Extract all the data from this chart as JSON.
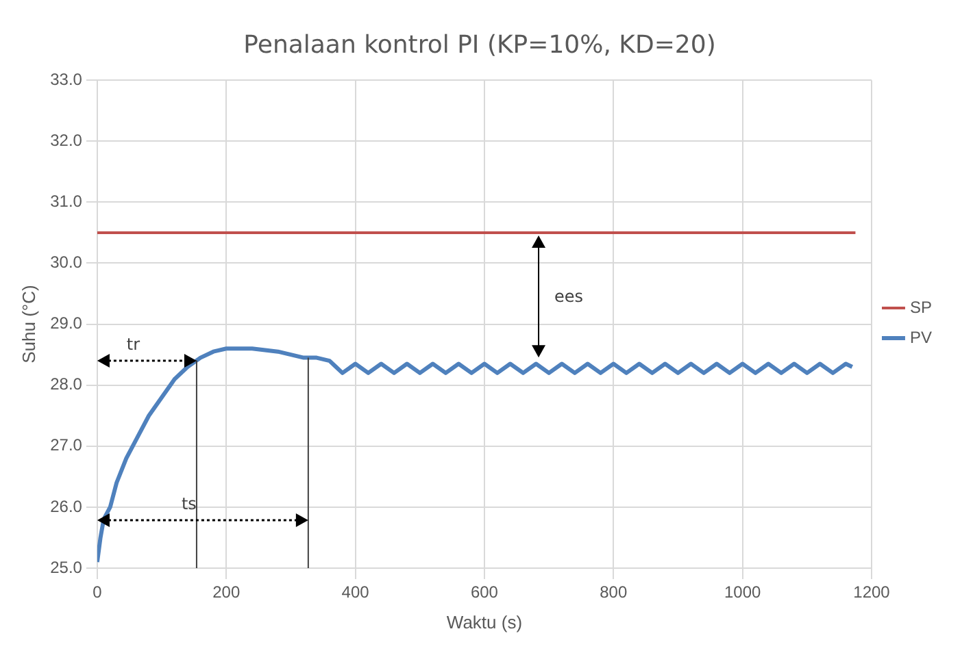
{
  "chart_data": {
    "type": "line",
    "title": "Penalaan kontrol PI (KP=10%, KD=20)",
    "xlabel": "Waktu (s)",
    "ylabel": "Suhu (°C)",
    "xlim": [
      0,
      1200
    ],
    "xticks": [
      0,
      200,
      400,
      600,
      800,
      1000,
      1200
    ],
    "ylim": [
      25,
      33
    ],
    "yticks": [
      {
        "value": 25,
        "label": "25.0"
      },
      {
        "value": 26,
        "label": "26.0"
      },
      {
        "value": 27,
        "label": "27.0"
      },
      {
        "value": 28,
        "label": "28.0"
      },
      {
        "value": 29,
        "label": "29.0"
      },
      {
        "value": 30,
        "label": "30.0"
      },
      {
        "value": 31,
        "label": "31.0"
      },
      {
        "value": 32,
        "label": "32.0"
      },
      {
        "value": 33,
        "label": "33.0"
      }
    ],
    "grid": true,
    "legend": "right",
    "marker": "none",
    "line_style": "solid",
    "series": [
      {
        "name": "SP",
        "color": "#c0504d",
        "x": [
          0,
          1175
        ],
        "values": [
          30.5,
          30.5
        ]
      },
      {
        "name": "PV",
        "color": "#4f81bd",
        "x": [
          0,
          5,
          10,
          20,
          30,
          45,
          60,
          80,
          100,
          120,
          140,
          160,
          180,
          200,
          240,
          280,
          300,
          320,
          340,
          360,
          370,
          380,
          400,
          420,
          440,
          460,
          480,
          500,
          520,
          540,
          560,
          580,
          600,
          620,
          640,
          660,
          680,
          700,
          720,
          740,
          760,
          780,
          800,
          820,
          840,
          860,
          880,
          900,
          920,
          940,
          960,
          980,
          1000,
          1020,
          1040,
          1060,
          1080,
          1100,
          1120,
          1140,
          1160,
          1170
        ],
        "values": [
          25.1,
          25.5,
          25.8,
          26.0,
          26.4,
          26.8,
          27.1,
          27.5,
          27.8,
          28.1,
          28.3,
          28.45,
          28.55,
          28.6,
          28.6,
          28.55,
          28.5,
          28.45,
          28.45,
          28.4,
          28.3,
          28.2,
          28.35,
          28.2,
          28.35,
          28.2,
          28.35,
          28.2,
          28.35,
          28.2,
          28.35,
          28.2,
          28.35,
          28.2,
          28.35,
          28.2,
          28.35,
          28.2,
          28.35,
          28.2,
          28.35,
          28.2,
          28.35,
          28.2,
          28.35,
          28.2,
          28.35,
          28.2,
          28.35,
          28.2,
          28.35,
          28.2,
          28.35,
          28.2,
          28.35,
          28.2,
          28.35,
          28.2,
          28.35,
          28.2,
          28.35,
          28.3
        ]
      }
    ],
    "ref_lines": [
      {
        "axis": "x",
        "value": 154,
        "color": "#404040"
      },
      {
        "axis": "x",
        "value": 327,
        "color": "#404040"
      }
    ],
    "annotations": [
      {
        "text": "tr",
        "x": 154,
        "y": 28.4
      },
      "ts",
      "ees"
    ]
  }
}
